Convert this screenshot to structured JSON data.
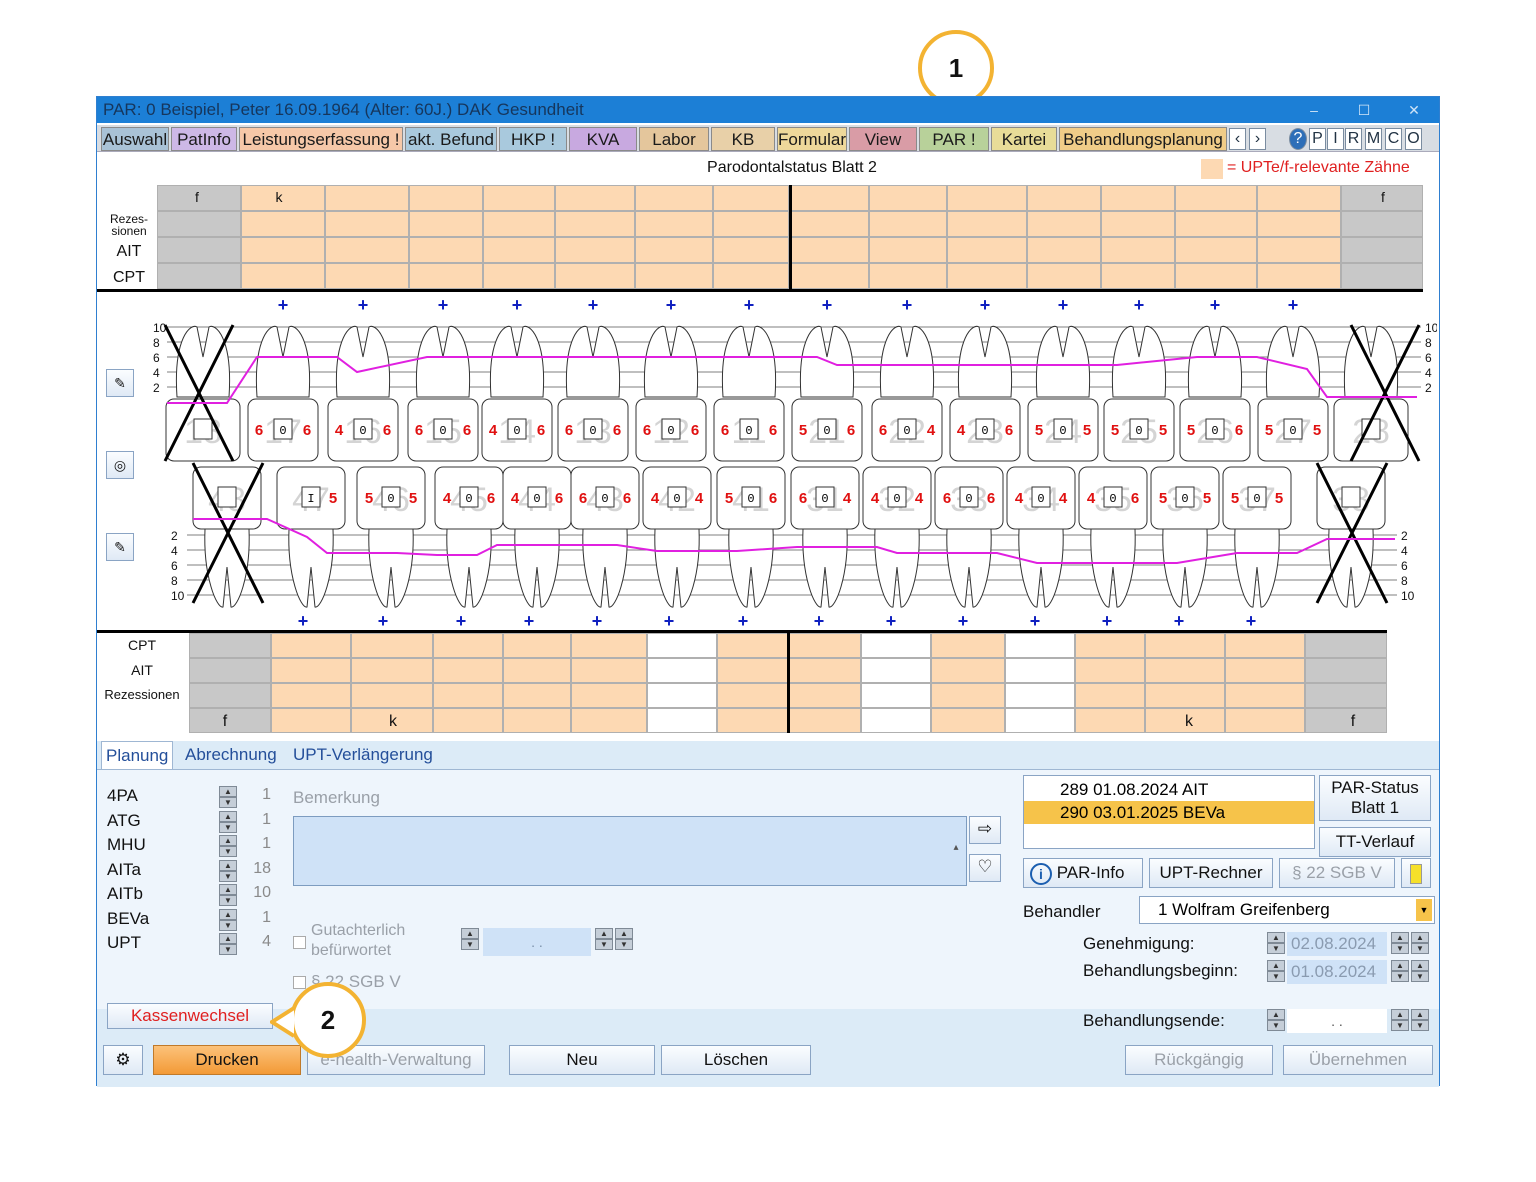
{
  "window": {
    "title": "PAR: 0  Beispiel, Peter  16.09.1964 (Alter: 60J.)  DAK Gesundheit",
    "minimize": "‒",
    "maximize": "☐",
    "close": "✕"
  },
  "menu": {
    "tabs": [
      {
        "label": "Auswahl",
        "color": "#a9c2d6"
      },
      {
        "label": "PatInfo",
        "color": "#cdb8e6"
      },
      {
        "label": "Leistungserfassung !",
        "color": "#f6c8a8"
      },
      {
        "label": "akt. Befund",
        "color": "#a9c9dd"
      },
      {
        "label": "HKP !",
        "color": "#a9c9dd"
      },
      {
        "label": "KVA",
        "color": "#c8a9e0"
      },
      {
        "label": "Labor",
        "color": "#e4c69c"
      },
      {
        "label": "KB",
        "color": "#e8d0a8"
      },
      {
        "label": "Formular",
        "color": "#eed89a"
      },
      {
        "label": "View",
        "color": "#d99ca6"
      },
      {
        "label": "PAR !",
        "color": "#b8d19a"
      },
      {
        "label": "Kartei",
        "color": "#e8dc98"
      },
      {
        "label": "Behandlungsplanung",
        "color": "#f0cc88"
      }
    ],
    "icons": [
      "‹",
      "›",
      "?",
      "P",
      "I",
      "R",
      "M",
      "C",
      "O"
    ]
  },
  "sheet": {
    "title": "Parodontalstatus Blatt 2",
    "legend": "= UPTe/f-relevante Zähne"
  },
  "upper_table": {
    "rows": [
      "Rezes-\nsionen",
      "AIT",
      "CPT"
    ],
    "row1": "Rezes-",
    "row1b": "sionen",
    "header_f_left": "f",
    "header_k": "k",
    "header_f_right": "f"
  },
  "lower_table": {
    "rows": [
      "CPT",
      "AIT",
      "Rezessionen"
    ],
    "footer_f_left": "f",
    "footer_k_left": "k",
    "footer_k_right": "k",
    "footer_f_right": "f"
  },
  "chart": {
    "upper_teeth": [
      "18",
      "17",
      "16",
      "15",
      "14",
      "13",
      "12",
      "11",
      "21",
      "22",
      "23",
      "24",
      "25",
      "26",
      "27",
      "28"
    ],
    "lower_teeth": [
      "48",
      "47",
      "46",
      "45",
      "44",
      "43",
      "42",
      "41",
      "31",
      "32",
      "33",
      "34",
      "35",
      "36",
      "37",
      "38"
    ],
    "upper_values": [
      [
        "",
        ""
      ],
      [
        "6",
        "6"
      ],
      [
        "4",
        "6"
      ],
      [
        "6",
        "6"
      ],
      [
        "4",
        "6"
      ],
      [
        "6",
        "6"
      ],
      [
        "6",
        "6"
      ],
      [
        "6",
        "6"
      ],
      [
        "5",
        "6"
      ],
      [
        "6",
        "4"
      ],
      [
        "4",
        "6"
      ],
      [
        "5",
        "5"
      ],
      [
        "5",
        "5"
      ],
      [
        "5",
        "6"
      ],
      [
        "5",
        "5"
      ],
      [
        "",
        ""
      ]
    ],
    "upper_center": [
      "",
      "0",
      "0",
      "0",
      "0",
      "0",
      "0",
      "0",
      "0",
      "0",
      "0",
      "0",
      "0",
      "0",
      "0",
      ""
    ],
    "lower_values": [
      [
        "",
        ""
      ],
      [
        "",
        "5"
      ],
      [
        "5",
        "5"
      ],
      [
        "4",
        "6"
      ],
      [
        "4",
        "6"
      ],
      [
        "6",
        "6"
      ],
      [
        "4",
        "4"
      ],
      [
        "5",
        "6"
      ],
      [
        "6",
        "4"
      ],
      [
        "4",
        "4"
      ],
      [
        "6",
        "6"
      ],
      [
        "4",
        "4"
      ],
      [
        "4",
        "6"
      ],
      [
        "5",
        "5"
      ],
      [
        "5",
        "5"
      ],
      [
        "",
        ""
      ]
    ],
    "lower_center": [
      "",
      "I",
      "0",
      "0",
      "0",
      "0",
      "0",
      "0",
      "0",
      "0",
      "0",
      "0",
      "0",
      "0",
      "0",
      ""
    ],
    "scale_upper": [
      "10",
      "8",
      "6",
      "4",
      "2"
    ],
    "scale_lower": [
      "2",
      "4",
      "6",
      "8",
      "10"
    ],
    "plus": "+"
  },
  "tabs": {
    "planung": "Planung",
    "abrechnung": "Abrechnung",
    "upt": "UPT-Verlängerung"
  },
  "planning": {
    "items": [
      {
        "code": "4PA",
        "value": "1"
      },
      {
        "code": "ATG",
        "value": "1"
      },
      {
        "code": "MHU",
        "value": "1"
      },
      {
        "code": "AITa",
        "value": "18"
      },
      {
        "code": "AITb",
        "value": "10"
      },
      {
        "code": "BEVa",
        "value": "1"
      },
      {
        "code": "UPT",
        "value": "4"
      }
    ],
    "bemerkung_label": "Bemerkung",
    "gutachterlich_1": "Gutachterlich",
    "gutachterlich_2": "befürwortet",
    "date_placeholder": ".   .",
    "sgb": "§ 22 SGB V",
    "kassenwechsel": "Kassenwechsel"
  },
  "history": {
    "entries": [
      {
        "text": "289 01.08.2024  AIT",
        "selected": false
      },
      {
        "text": "290 03.01.2025  BEVa",
        "selected": true
      }
    ]
  },
  "right": {
    "par_status": "PAR-Status",
    "blatt1": "Blatt 1",
    "tt_verlauf": "TT-Verlauf",
    "par_info": "PAR-Info",
    "upt_rechner": "UPT-Rechner",
    "sgb_btn": "§ 22 SGB V",
    "behandler_label": "Behandler",
    "behandler_value": "1 Wolfram Greifenberg",
    "genehmigung_label": "Genehmigung:",
    "genehmigung_value": "02.08.2024",
    "beginn_label": "Behandlungsbeginn:",
    "beginn_value": "01.08.2024",
    "ende_label": "Behandlungsende:",
    "ende_value": ".   ."
  },
  "footer": {
    "drucken": "Drucken",
    "ehealth": "e-health-Verwaltung",
    "neu": "Neu",
    "loeschen": "Löschen",
    "rueckgaengig": "Rückgängig",
    "uebernehmen": "Übernehmen"
  },
  "callouts": {
    "one": "1",
    "two": "2"
  },
  "colors": {
    "peach": "#fdd9b3",
    "grey_cell": "#c8c8c8",
    "pocket_line": "#e020e0",
    "value_red": "#e01010",
    "plus_blue": "#1020c0",
    "callout": "#f3b332",
    "selected_row": "#f6c34a",
    "drucken_btn": "#f7a94a"
  }
}
